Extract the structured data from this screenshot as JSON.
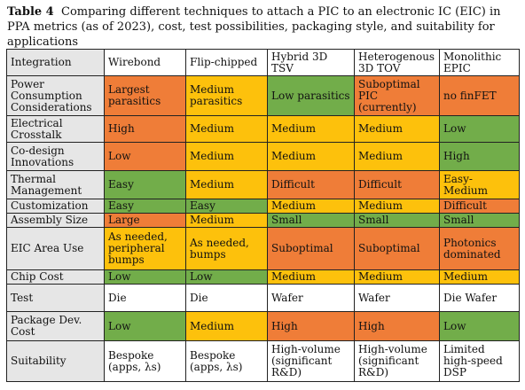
{
  "caption": {
    "label": "Table 4",
    "text": "Comparing different techniques to attach a PIC to an electronic IC (EIC) in PPA metrics (as of 2023), cost, test possibilities, packaging style, and suitability for applications"
  },
  "colors": {
    "white": "#ffffff",
    "orange": "#ef7d38",
    "yellow": "#fdc10c",
    "green": "#72ad4a",
    "label": "#e6e6e6"
  },
  "header": [
    "Integration",
    "Wirebond",
    "Flip-chipped",
    "Hybrid 3D TSV",
    "Heterogenous 3D TOV",
    "Monolithic EPIC"
  ],
  "rows": [
    {
      "label": "Power Consumption Considerations",
      "h": 45,
      "cells": [
        {
          "t": "Largest parasitics",
          "c": "o"
        },
        {
          "t": "Medium parasitics",
          "c": "y"
        },
        {
          "t": "Low parasitics",
          "c": "g"
        },
        {
          "t": "Suboptimal PIC (currently)",
          "c": "o"
        },
        {
          "t": "no finFET",
          "c": "o"
        }
      ]
    },
    {
      "label": "Electrical Crosstalk",
      "h": 30,
      "cells": [
        {
          "t": "High",
          "c": "o"
        },
        {
          "t": "Medium",
          "c": "y"
        },
        {
          "t": "Medium",
          "c": "y"
        },
        {
          "t": "Medium",
          "c": "y"
        },
        {
          "t": "Low",
          "c": "g"
        }
      ]
    },
    {
      "label": "Co-design Innovations",
      "h": 32,
      "cells": [
        {
          "t": "Low",
          "c": "o"
        },
        {
          "t": "Medium",
          "c": "y"
        },
        {
          "t": "Medium",
          "c": "y"
        },
        {
          "t": "Medium",
          "c": "y"
        },
        {
          "t": "High",
          "c": "g"
        }
      ]
    },
    {
      "label": "Thermal Management",
      "h": 32,
      "cells": [
        {
          "t": "Easy",
          "c": "g"
        },
        {
          "t": "Medium",
          "c": "y"
        },
        {
          "t": "Difficult",
          "c": "o"
        },
        {
          "t": "Difficult",
          "c": "o"
        },
        {
          "t": "Easy-Medium",
          "c": "y"
        }
      ]
    },
    {
      "label": "Customization",
      "h": 16,
      "cells": [
        {
          "t": "Easy",
          "c": "g"
        },
        {
          "t": "Easy",
          "c": "g"
        },
        {
          "t": "Medium",
          "c": "y"
        },
        {
          "t": "Medium",
          "c": "y"
        },
        {
          "t": "Difficult",
          "c": "o"
        }
      ]
    },
    {
      "label": "Assembly Size",
      "h": 15,
      "cells": [
        {
          "t": "Large",
          "c": "o"
        },
        {
          "t": "Medium",
          "c": "y"
        },
        {
          "t": "Small",
          "c": "g"
        },
        {
          "t": "Small",
          "c": "g"
        },
        {
          "t": "Small",
          "c": "g"
        }
      ]
    },
    {
      "label": "EIC Area Use",
      "h": 48,
      "cells": [
        {
          "t": "As needed, peripheral bumps",
          "c": "y"
        },
        {
          "t": "As needed, bumps",
          "c": "y"
        },
        {
          "t": "Suboptimal",
          "c": "o"
        },
        {
          "t": "Suboptimal",
          "c": "o"
        },
        {
          "t": "Photonics dominated",
          "c": "o"
        }
      ]
    },
    {
      "label": "Chip Cost",
      "h": 16,
      "cells": [
        {
          "t": "Low",
          "c": "g"
        },
        {
          "t": "Low",
          "c": "g"
        },
        {
          "t": "Medium",
          "c": "y"
        },
        {
          "t": "Medium",
          "c": "y"
        },
        {
          "t": "Medium",
          "c": "y"
        }
      ]
    },
    {
      "label": "Test",
      "h": 31,
      "cells": [
        {
          "t": "Die",
          "c": "w"
        },
        {
          "t": "Die",
          "c": "w"
        },
        {
          "t": "Wafer",
          "c": "w"
        },
        {
          "t": "Wafer",
          "c": "w"
        },
        {
          "t": "Die Wafer",
          "c": "w"
        }
      ]
    },
    {
      "label": "Package Dev. Cost",
      "h": 33,
      "cells": [
        {
          "t": "Low",
          "c": "g"
        },
        {
          "t": "Medium",
          "c": "y"
        },
        {
          "t": "High",
          "c": "o"
        },
        {
          "t": "High",
          "c": "o"
        },
        {
          "t": "Low",
          "c": "g"
        }
      ]
    },
    {
      "label": "Suitability",
      "h": 46,
      "cells": [
        {
          "t": "Bespoke (apps, λs)",
          "c": "w"
        },
        {
          "t": "Bespoke (apps, λs)",
          "c": "w"
        },
        {
          "t": "High-volume (significant R&D)",
          "c": "w"
        },
        {
          "t": "High-volume (significant R&D)",
          "c": "w"
        },
        {
          "t": "Limited high-speed DSP",
          "c": "w"
        }
      ]
    }
  ]
}
